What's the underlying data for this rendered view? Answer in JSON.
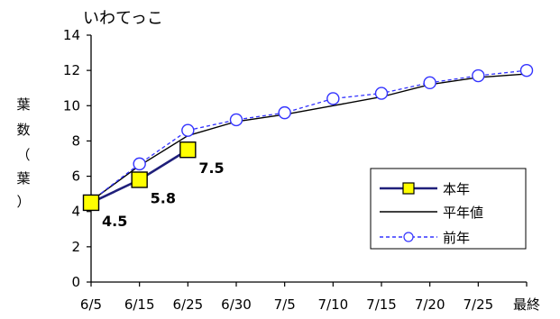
{
  "chart_data": {
    "type": "line",
    "title": "いわてっこ",
    "ylabel": "葉数（葉）",
    "ylim": [
      0,
      14
    ],
    "yticks": [
      0,
      2,
      4,
      6,
      8,
      10,
      12,
      14
    ],
    "categories": [
      "6/5",
      "6/15",
      "6/25",
      "6/30",
      "7/5",
      "7/10",
      "7/15",
      "7/20",
      "7/25",
      "最終"
    ],
    "grid": false,
    "legend_position": "bottom-right",
    "series": [
      {
        "name": "本年",
        "values": [
          4.5,
          5.8,
          7.5,
          null,
          null,
          null,
          null,
          null,
          null,
          null
        ],
        "color": "#1f1f7a",
        "marker": "square",
        "marker_fill": "#ffff00",
        "data_labels": [
          "4.5",
          "5.8",
          "7.5"
        ]
      },
      {
        "name": "平年値",
        "values": [
          4.6,
          6.6,
          8.3,
          9.1,
          9.5,
          10.0,
          10.5,
          11.2,
          11.6,
          11.8
        ],
        "color": "#000000",
        "marker": "none"
      },
      {
        "name": "前年",
        "values": [
          4.6,
          6.7,
          8.6,
          9.2,
          9.6,
          10.4,
          10.7,
          11.3,
          11.7,
          12.0
        ],
        "color": "#3333ff",
        "marker": "circle",
        "marker_fill": "#ffffff",
        "dashed": true
      }
    ]
  }
}
